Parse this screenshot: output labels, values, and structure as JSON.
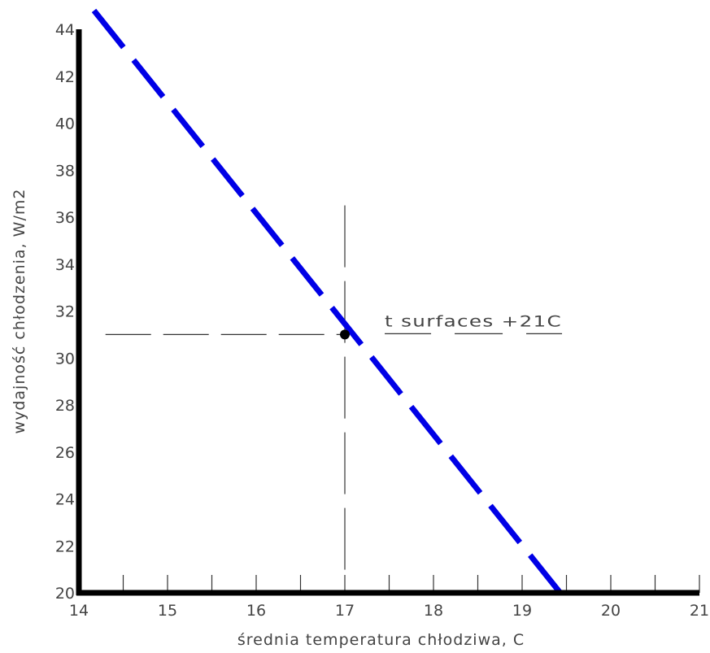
{
  "chart_data": {
    "type": "line",
    "xlabel": "średnia temperatura chłodziwa, C",
    "ylabel": "wydajność chłodzenia, W/m2",
    "xlim": [
      14,
      21
    ],
    "ylim": [
      20,
      44
    ],
    "x_ticks": [
      "14",
      "15",
      "16",
      "17",
      "18",
      "19",
      "20",
      "21"
    ],
    "y_ticks": [
      "20",
      "22",
      "24",
      "26",
      "28",
      "30",
      "32",
      "34",
      "36",
      "38",
      "40",
      "42",
      "44"
    ],
    "x_minor_step": 0.5,
    "grid": false,
    "series": [
      {
        "x": [
          14.17,
          19.43
        ],
        "y": [
          44.8,
          20.0
        ],
        "color": "#0000e6",
        "style": "dashed"
      }
    ],
    "point": {
      "x": 17.0,
      "y": 31.0
    },
    "guide_vertical": {
      "x": 17.0,
      "y_from": 20.8,
      "y_to": 36.5
    },
    "guide_horizontal": {
      "y": 31.0,
      "x_from": 14.3,
      "x_to": 17.0
    },
    "annotation": {
      "text": "t surfaces +21C",
      "x": 17.45,
      "y": 31.0
    }
  }
}
